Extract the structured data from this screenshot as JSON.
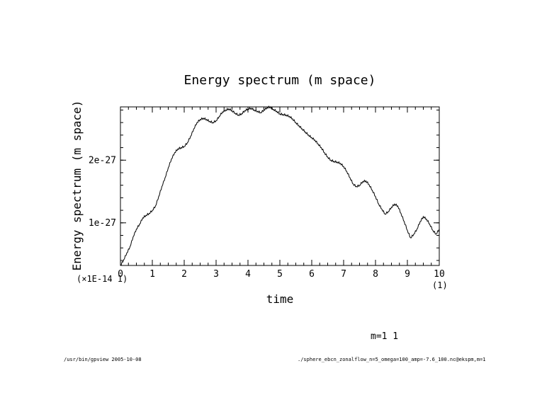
{
  "chart_data": {
    "type": "line",
    "title": "Energy spectrum (m space)",
    "xlabel": "time",
    "ylabel": "Energy spectrum (m space)",
    "x_scale_note": "(×1E-14 1)",
    "x_unit_note": "(1)",
    "xlim": [
      0,
      10
    ],
    "ylim": [
      3.2e-28,
      2.85e-27
    ],
    "x_ticks": [
      0,
      1,
      2,
      3,
      4,
      5,
      6,
      7,
      8,
      9,
      10
    ],
    "x_tick_labels": [
      "0",
      "1",
      "2",
      "3",
      "4",
      "5",
      "6",
      "7",
      "8",
      "9",
      "10"
    ],
    "y_ticks": [
      1e-27,
      2e-27
    ],
    "y_tick_labels": [
      "1e-27",
      "2e-27"
    ],
    "legend": "m=1 1",
    "series": [
      {
        "name": "m=1",
        "x": [
          0,
          0.1,
          0.2,
          0.3,
          0.4,
          0.5,
          0.6,
          0.7,
          0.8,
          0.9,
          1.0,
          1.1,
          1.2,
          1.3,
          1.4,
          1.5,
          1.6,
          1.7,
          1.8,
          1.9,
          2.0,
          2.1,
          2.2,
          2.3,
          2.4,
          2.5,
          2.6,
          2.7,
          2.8,
          2.9,
          3.0,
          3.1,
          3.2,
          3.3,
          3.4,
          3.5,
          3.6,
          3.7,
          3.8,
          3.9,
          4.0,
          4.1,
          4.2,
          4.3,
          4.4,
          4.5,
          4.6,
          4.7,
          4.8,
          4.9,
          5.0,
          5.1,
          5.2,
          5.3,
          5.4,
          5.5,
          5.6,
          5.7,
          5.8,
          5.9,
          6.0,
          6.1,
          6.2,
          6.3,
          6.4,
          6.5,
          6.6,
          6.7,
          6.8,
          6.9,
          7.0,
          7.1,
          7.2,
          7.3,
          7.4,
          7.5,
          7.6,
          7.7,
          7.8,
          7.9,
          8.0,
          8.1,
          8.2,
          8.3,
          8.4,
          8.5,
          8.6,
          8.7,
          8.8,
          8.9,
          9.0,
          9.1,
          9.2,
          9.3,
          9.4,
          9.5,
          9.6,
          9.7,
          9.8,
          9.9,
          10.0
        ],
        "y": [
          3.2e-28,
          4.1e-28,
          5.2e-28,
          6.2e-28,
          7.8e-28,
          9e-28,
          9.8e-28,
          1.08e-27,
          1.12e-27,
          1.15e-27,
          1.2e-27,
          1.27e-27,
          1.42e-27,
          1.58e-27,
          1.72e-27,
          1.88e-27,
          2.02e-27,
          2.12e-27,
          2.18e-27,
          2.2e-27,
          2.22e-27,
          2.28e-27,
          2.38e-27,
          2.5e-27,
          2.6e-27,
          2.65e-27,
          2.67e-27,
          2.65e-27,
          2.62e-27,
          2.6e-27,
          2.63e-27,
          2.7e-27,
          2.77e-27,
          2.8e-27,
          2.82e-27,
          2.79e-27,
          2.75e-27,
          2.72e-27,
          2.74e-27,
          2.79e-27,
          2.82e-27,
          2.83e-27,
          2.8e-27,
          2.78e-27,
          2.76e-27,
          2.8e-27,
          2.84e-27,
          2.85e-27,
          2.81e-27,
          2.78e-27,
          2.74e-27,
          2.73e-27,
          2.72e-27,
          2.7e-27,
          2.66e-27,
          2.6e-27,
          2.55e-27,
          2.5e-27,
          2.45e-27,
          2.4e-27,
          2.36e-27,
          2.32e-27,
          2.26e-27,
          2.2e-27,
          2.12e-27,
          2.05e-27,
          2e-27,
          1.98e-27,
          1.97e-27,
          1.95e-27,
          1.9e-27,
          1.82e-27,
          1.72e-27,
          1.62e-27,
          1.58e-27,
          1.6e-27,
          1.66e-27,
          1.67e-27,
          1.61e-27,
          1.52e-27,
          1.42e-27,
          1.3e-27,
          1.22e-27,
          1.14e-27,
          1.18e-27,
          1.25e-27,
          1.3e-27,
          1.27e-27,
          1.15e-27,
          1.02e-27,
          8.8e-28,
          7.6e-28,
          8.2e-28,
          9e-28,
          1.02e-27,
          1.1e-27,
          1.06e-27,
          9.8e-28,
          8.8e-28,
          8.2e-28,
          9e-28
        ]
      }
    ]
  },
  "footer": {
    "left": "/usr/bin/gpview 2005-10-08",
    "right": "./sphere_ebcn_zonalflow_n=5_omega=100_amp=-7.6_100.nc@ekspm,m=1"
  }
}
